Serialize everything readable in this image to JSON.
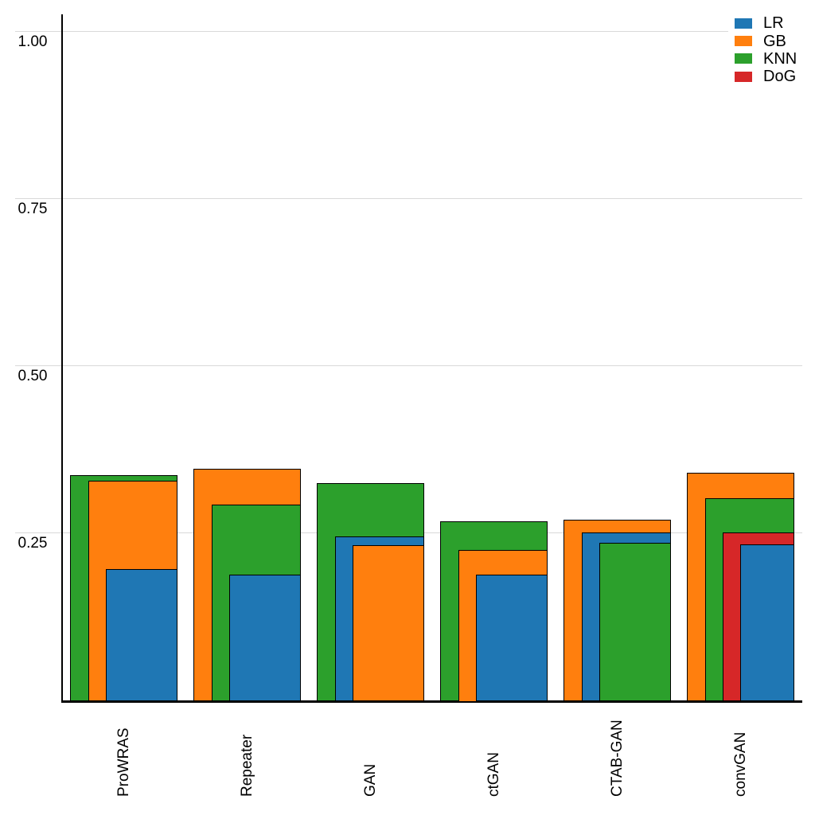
{
  "page": {
    "background_color": "#ffffff",
    "title": ""
  },
  "chart_data": {
    "type": "bar",
    "variant": "overlaid-nested-bars",
    "title": "",
    "xlabel": "",
    "ylabel": "",
    "categories": [
      "ProWRAS",
      "Repeater",
      "GAN",
      "ctGAN",
      "CTAB-GAN",
      "convGAN"
    ],
    "series": [
      {
        "name": "LR",
        "color": "#1f77b4",
        "values": [
          0.196,
          0.187,
          0.245,
          0.188,
          0.251,
          0.233
        ]
      },
      {
        "name": "GB",
        "color": "#ff7f0e",
        "values": [
          0.328,
          0.346,
          0.231,
          0.225,
          0.27,
          0.34
        ]
      },
      {
        "name": "KNN",
        "color": "#2ca02c",
        "values": [
          0.336,
          0.292,
          0.324,
          0.267,
          0.235,
          0.302
        ]
      },
      {
        "name": "DoG",
        "color": "#d62728",
        "values": [
          null,
          null,
          null,
          null,
          null,
          0.251
        ]
      }
    ],
    "ylim": [
      0,
      1.045
    ],
    "yticks": [
      {
        "value": 0.25,
        "label": "0.25"
      },
      {
        "value": 0.5,
        "label": "0.50"
      },
      {
        "value": 0.75,
        "label": "0.75"
      },
      {
        "value": 1.0,
        "label": "1.00"
      }
    ],
    "grid": "horizontal-only",
    "gridline_color": "#d9d9d9",
    "bar_outline_color": "#000000",
    "legend_position": "top-right"
  }
}
